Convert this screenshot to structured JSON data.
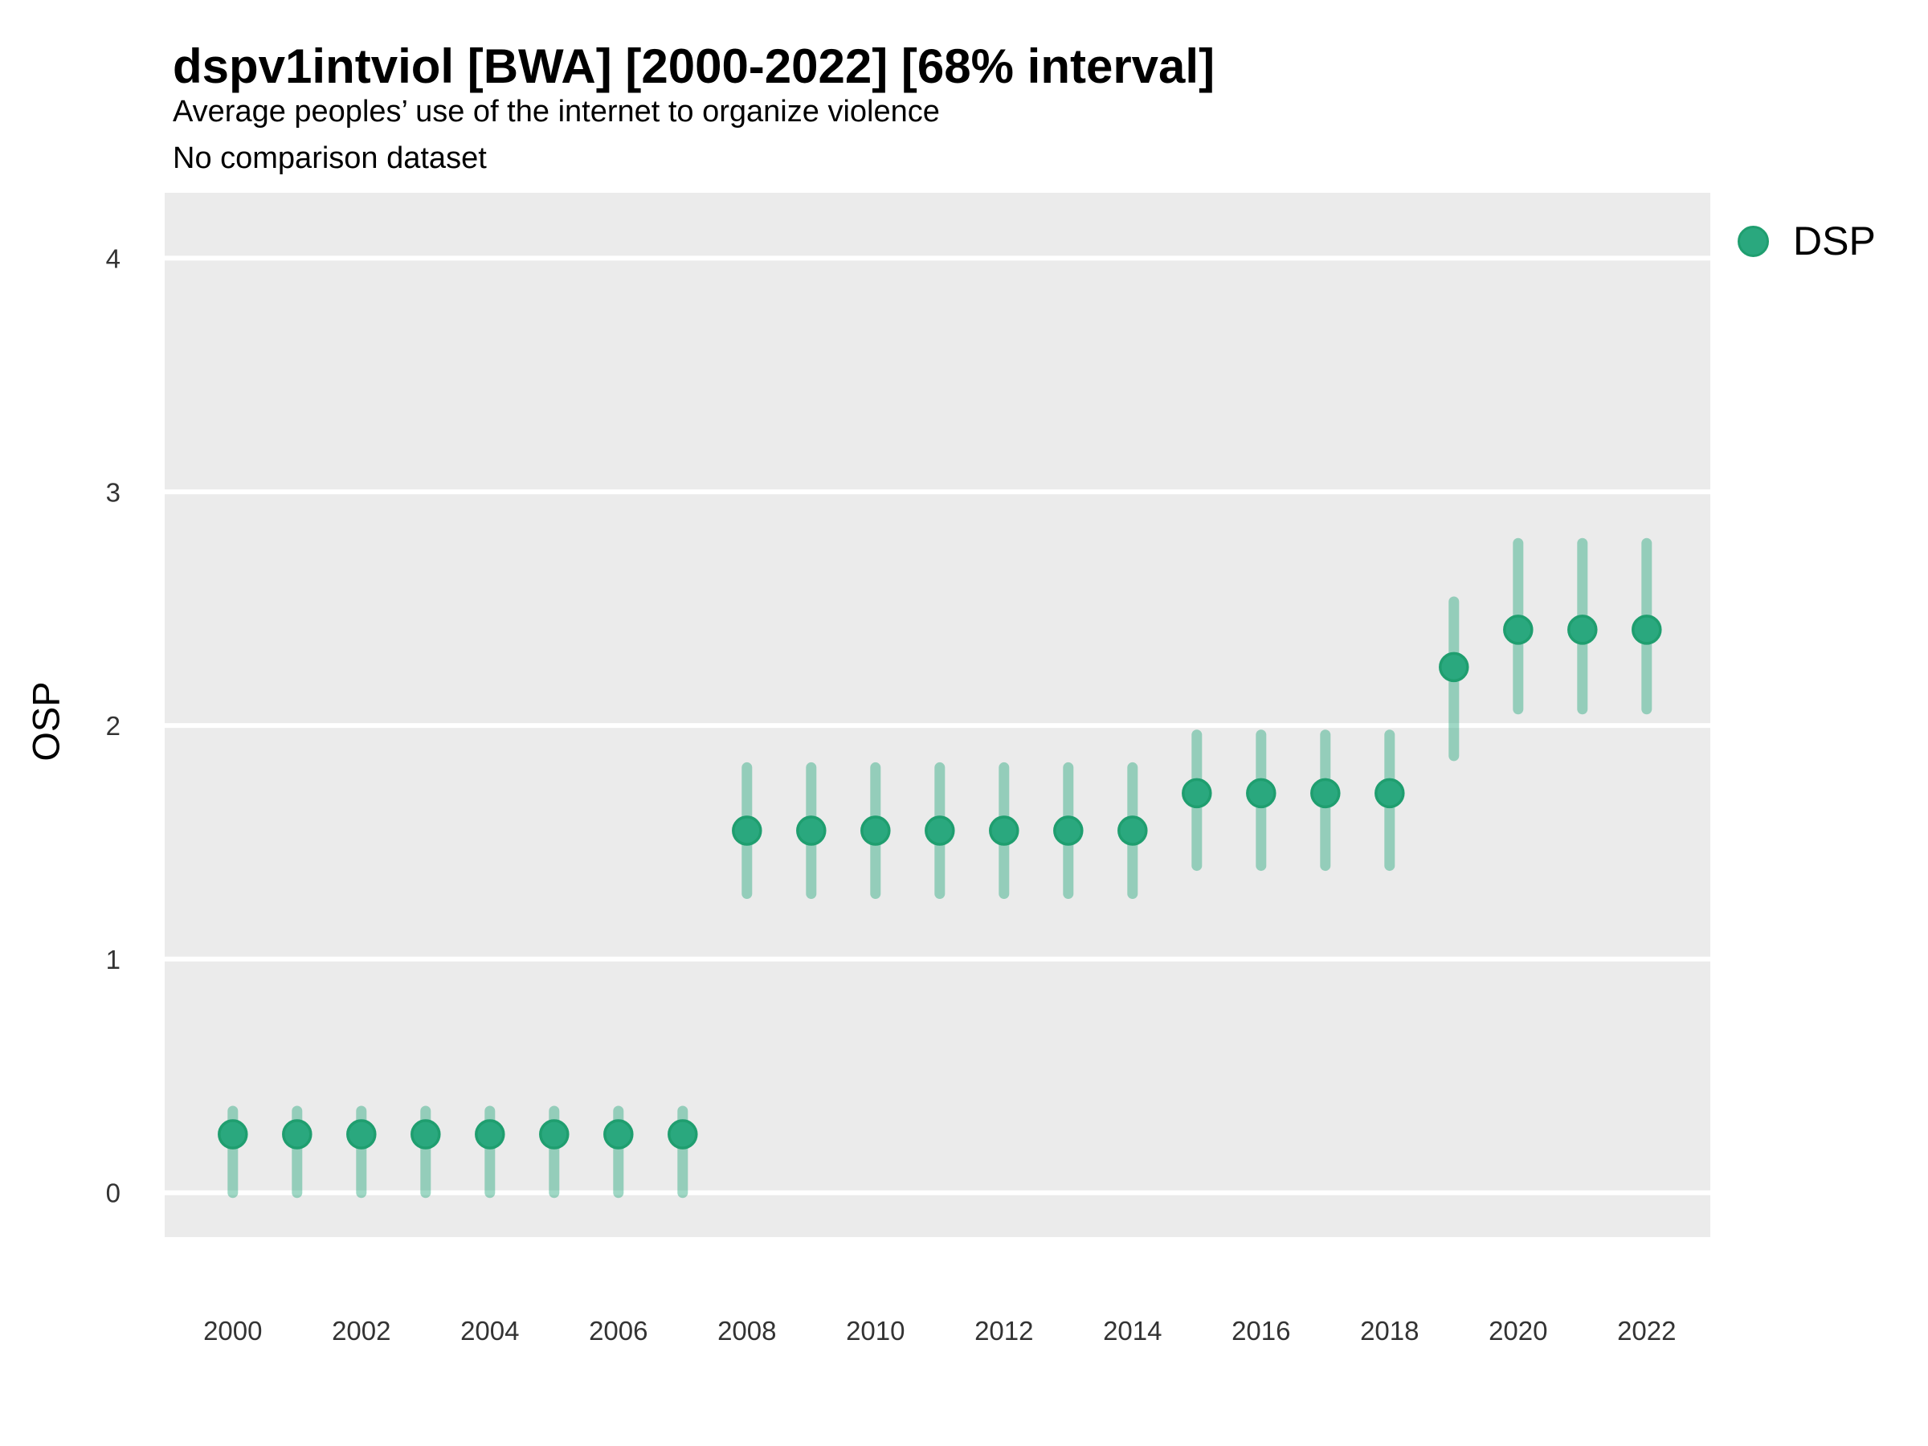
{
  "header": {
    "title": "dspv1intviol [BWA] [2000-2022] [68% interval]",
    "subtitle": "Average peoples’ use of the internet to organize violence",
    "subtitle2": "No comparison dataset"
  },
  "legend": {
    "items": [
      {
        "label": "DSP",
        "color": "#2aa87e"
      }
    ]
  },
  "colors": {
    "panel_bg": "#ebebeb",
    "grid": "#ffffff",
    "dot_fill": "#2aa87e",
    "dot_ring": "#1f9e6f",
    "interval_bar": "#2aa87e",
    "tick_text": "#333333",
    "title_text": "#000000"
  },
  "chart_data": {
    "type": "scatter",
    "subtype": "pointrange-interval",
    "title": "dspv1intviol [BWA] [2000-2022] [68% interval]",
    "subtitle": "Average peoples’ use of the internet to organize violence",
    "note": "No comparison dataset",
    "interval_level": "68%",
    "xlabel": "",
    "ylabel": "OSP",
    "legend_position": "right",
    "grid": "major-horizontal-white-on-gray",
    "xlim": [
      1998.94,
      2022.99
    ],
    "ylim": [
      -0.19,
      4.28
    ],
    "x_ticks": [
      2000,
      2002,
      2004,
      2006,
      2008,
      2010,
      2012,
      2014,
      2016,
      2018,
      2020,
      2022
    ],
    "y_ticks": [
      0,
      1,
      2,
      3,
      4
    ],
    "series": [
      {
        "name": "DSP",
        "color": "#2aa87e",
        "points": [
          {
            "year": 2000,
            "value": 0.25,
            "lo": 0.0,
            "hi": 0.35
          },
          {
            "year": 2001,
            "value": 0.25,
            "lo": 0.0,
            "hi": 0.35
          },
          {
            "year": 2002,
            "value": 0.25,
            "lo": 0.0,
            "hi": 0.35
          },
          {
            "year": 2003,
            "value": 0.25,
            "lo": 0.0,
            "hi": 0.35
          },
          {
            "year": 2004,
            "value": 0.25,
            "lo": 0.0,
            "hi": 0.35
          },
          {
            "year": 2005,
            "value": 0.25,
            "lo": 0.0,
            "hi": 0.35
          },
          {
            "year": 2006,
            "value": 0.25,
            "lo": 0.0,
            "hi": 0.35
          },
          {
            "year": 2007,
            "value": 0.25,
            "lo": 0.0,
            "hi": 0.35
          },
          {
            "year": 2008,
            "value": 1.55,
            "lo": 1.28,
            "hi": 1.82
          },
          {
            "year": 2009,
            "value": 1.55,
            "lo": 1.28,
            "hi": 1.82
          },
          {
            "year": 2010,
            "value": 1.55,
            "lo": 1.28,
            "hi": 1.82
          },
          {
            "year": 2011,
            "value": 1.55,
            "lo": 1.28,
            "hi": 1.82
          },
          {
            "year": 2012,
            "value": 1.55,
            "lo": 1.28,
            "hi": 1.82
          },
          {
            "year": 2013,
            "value": 1.55,
            "lo": 1.28,
            "hi": 1.82
          },
          {
            "year": 2014,
            "value": 1.55,
            "lo": 1.28,
            "hi": 1.82
          },
          {
            "year": 2015,
            "value": 1.71,
            "lo": 1.4,
            "hi": 1.96
          },
          {
            "year": 2016,
            "value": 1.71,
            "lo": 1.4,
            "hi": 1.96
          },
          {
            "year": 2017,
            "value": 1.71,
            "lo": 1.4,
            "hi": 1.96
          },
          {
            "year": 2018,
            "value": 1.71,
            "lo": 1.4,
            "hi": 1.96
          },
          {
            "year": 2019,
            "value": 2.25,
            "lo": 1.87,
            "hi": 2.53
          },
          {
            "year": 2020,
            "value": 2.41,
            "lo": 2.07,
            "hi": 2.78
          },
          {
            "year": 2021,
            "value": 2.41,
            "lo": 2.07,
            "hi": 2.78
          },
          {
            "year": 2022,
            "value": 2.41,
            "lo": 2.07,
            "hi": 2.78
          }
        ]
      }
    ]
  }
}
